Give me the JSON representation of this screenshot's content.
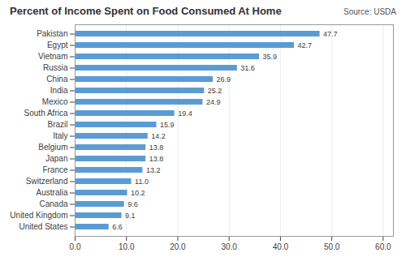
{
  "chart_data": {
    "type": "bar",
    "orientation": "horizontal",
    "title": "Percent of Income Spent on Food Consumed At Home",
    "annotation": "Source: USDA",
    "categories": [
      "United States",
      "United Kingdom",
      "Canada",
      "Australia",
      "Switzerland",
      "France",
      "Japan",
      "Belgium",
      "Italy",
      "Brazil",
      "South Africa",
      "Mexico",
      "India",
      "China",
      "Russia",
      "Vietnam",
      "Egypt",
      "Pakistan"
    ],
    "values": [
      6.6,
      9.1,
      9.6,
      10.2,
      11.0,
      13.2,
      13.8,
      13.8,
      14.2,
      15.9,
      19.4,
      24.9,
      25.2,
      26.9,
      31.6,
      35.9,
      42.7,
      47.7
    ],
    "value_labels": [
      "6.6",
      "9.1",
      "9.6",
      "10.2",
      "11.0",
      "13.2",
      "13.8",
      "13.8",
      "14.2",
      "15.9",
      "19.4",
      "24.9",
      "25.2",
      "26.9",
      "31.6",
      "35.9",
      "42.7",
      "47.7"
    ],
    "data_labels": true,
    "color": "#5B9BD5",
    "xlim": [
      0,
      62
    ],
    "xticks": [
      {
        "value": 0,
        "label": "0.0"
      },
      {
        "value": 10,
        "label": "10.0"
      },
      {
        "value": 20,
        "label": "20.0"
      },
      {
        "value": 30,
        "label": "30.0"
      },
      {
        "value": 40,
        "label": "40.0"
      },
      {
        "value": 50,
        "label": "50.0"
      },
      {
        "value": 60,
        "label": "60.0"
      }
    ],
    "grid": true
  }
}
